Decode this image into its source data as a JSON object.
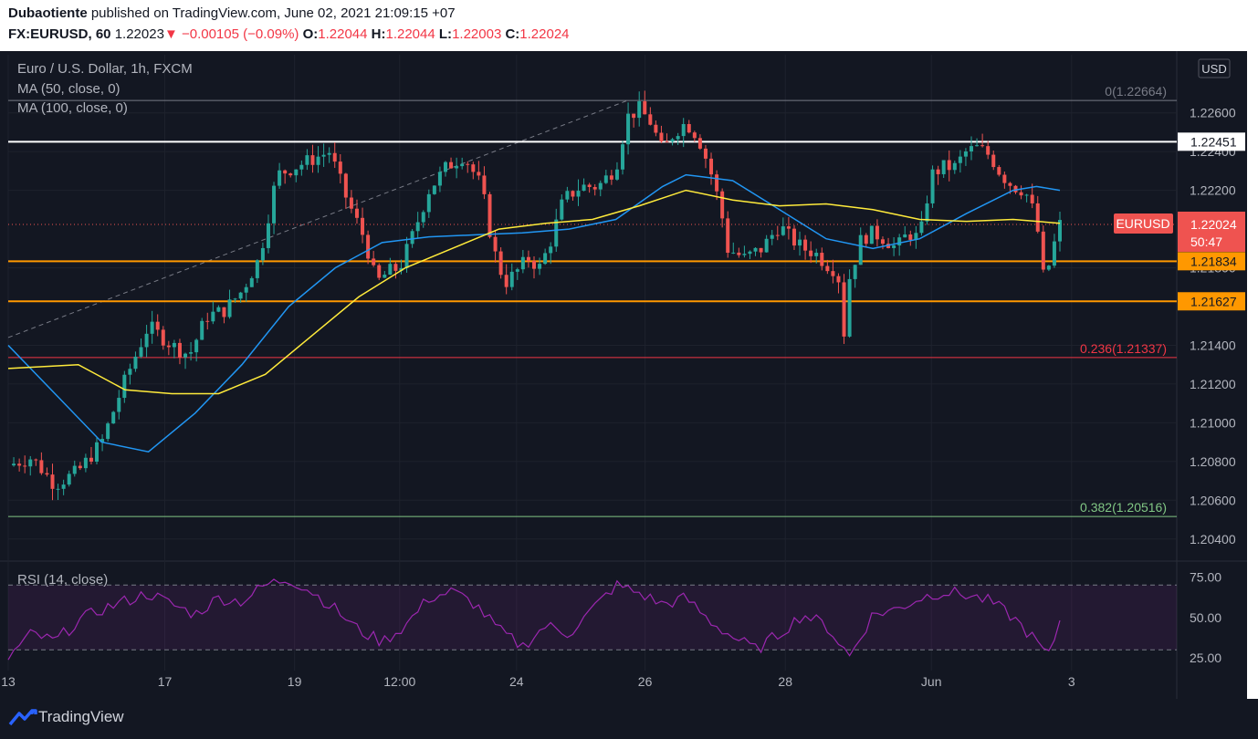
{
  "header": {
    "author": "Dubaotiente",
    "published_text": "published on TradingView.com, June 02, 2021 21:09:15 +07",
    "symbol": "FX:EURUSD, 60",
    "last": "1.22023",
    "change": "−0.00105 (−0.09%)",
    "o_label": "O:",
    "o_value": "1.22044",
    "h_label": "H:",
    "h_value": "1.22044",
    "l_label": "L:",
    "l_value": "1.22003",
    "c_label": "C:",
    "c_value": "1.22024"
  },
  "legend": {
    "title": "Euro / U.S. Dollar, 1h, FXCM",
    "ma50": "MA (50, close, 0)",
    "ma100": "MA (100, close, 0)",
    "rsi": "RSI (14, close)"
  },
  "footer": {
    "brand": "TradingView"
  },
  "colors": {
    "background": "#131722",
    "up": "#26a69a",
    "down": "#ef5350",
    "ma50": "#2196f3",
    "ma100": "#ffeb3b",
    "support": "#ff9800",
    "resistance": "#ffffff",
    "fib0": "#787b86",
    "fib236": "#f23645",
    "fib382": "#81c784",
    "rsi": "#9c27b0"
  },
  "chart_data": {
    "type": "candlestick",
    "currency": "USD",
    "ylim": [
      1.203,
      1.229
    ],
    "y_ticks": [
      "1.22600",
      "1.22400",
      "1.22200",
      "1.21800",
      "1.21400",
      "1.21200",
      "1.21000",
      "1.20800",
      "1.20600",
      "1.20400"
    ],
    "x_ticks": [
      "13",
      "17",
      "19",
      "12:00",
      "24",
      "26",
      "28",
      "Jun",
      "3"
    ],
    "price_levels": [
      {
        "label": "1.22451",
        "value": 1.22451,
        "kind": "resistance"
      },
      {
        "label": "1.21834",
        "value": 1.21834,
        "kind": "support"
      },
      {
        "label": "1.21627",
        "value": 1.21627,
        "kind": "support"
      }
    ],
    "fib_levels": [
      {
        "label": "0(1.22664)",
        "value": 1.22664
      },
      {
        "label": "0.236(1.21337)",
        "value": 1.21337
      },
      {
        "label": "0.382(1.20516)",
        "value": 1.20516
      }
    ],
    "current": {
      "label": "EURUSD",
      "price": "1.22024",
      "countdown": "50:47",
      "value": 1.22024
    },
    "close_path": [
      [
        0,
        1.2078
      ],
      [
        0.02,
        1.2082
      ],
      [
        0.04,
        1.2068
      ],
      [
        0.06,
        1.2075
      ],
      [
        0.08,
        1.209
      ],
      [
        0.1,
        1.2122
      ],
      [
        0.12,
        1.215
      ],
      [
        0.14,
        1.214
      ],
      [
        0.155,
        1.2135
      ],
      [
        0.17,
        1.2155
      ],
      [
        0.185,
        1.2158
      ],
      [
        0.2,
        1.2168
      ],
      [
        0.215,
        1.2185
      ],
      [
        0.23,
        1.2228
      ],
      [
        0.245,
        1.2232
      ],
      [
        0.26,
        1.2236
      ],
      [
        0.275,
        1.224
      ],
      [
        0.29,
        1.2215
      ],
      [
        0.305,
        1.2195
      ],
      [
        0.315,
        1.2172
      ],
      [
        0.325,
        1.2178
      ],
      [
        0.335,
        1.218
      ],
      [
        0.345,
        1.2195
      ],
      [
        0.36,
        1.222
      ],
      [
        0.375,
        1.2232
      ],
      [
        0.39,
        1.2238
      ],
      [
        0.405,
        1.2222
      ],
      [
        0.415,
        1.219
      ],
      [
        0.425,
        1.2172
      ],
      [
        0.435,
        1.2178
      ],
      [
        0.445,
        1.2185
      ],
      [
        0.455,
        1.218
      ],
      [
        0.465,
        1.2195
      ],
      [
        0.475,
        1.2215
      ],
      [
        0.49,
        1.2222
      ],
      [
        0.505,
        1.2222
      ],
      [
        0.52,
        1.2232
      ],
      [
        0.53,
        1.2258
      ],
      [
        0.54,
        1.2262
      ],
      [
        0.55,
        1.2255
      ],
      [
        0.56,
        1.224
      ],
      [
        0.57,
        1.225
      ],
      [
        0.58,
        1.2255
      ],
      [
        0.59,
        1.2248
      ],
      [
        0.6,
        1.2232
      ],
      [
        0.61,
        1.221
      ],
      [
        0.615,
        1.219
      ],
      [
        0.63,
        1.2185
      ],
      [
        0.645,
        1.219
      ],
      [
        0.66,
        1.2202
      ],
      [
        0.67,
        1.2195
      ],
      [
        0.68,
        1.219
      ],
      [
        0.69,
        1.2188
      ],
      [
        0.7,
        1.2182
      ],
      [
        0.71,
        1.2178
      ],
      [
        0.715,
        1.2145
      ],
      [
        0.72,
        1.2175
      ],
      [
        0.73,
        1.2195
      ],
      [
        0.74,
        1.2198
      ],
      [
        0.75,
        1.2195
      ],
      [
        0.76,
        1.219
      ],
      [
        0.77,
        1.2198
      ],
      [
        0.78,
        1.2195
      ],
      [
        0.79,
        1.2228
      ],
      [
        0.8,
        1.2232
      ],
      [
        0.81,
        1.2232
      ],
      [
        0.82,
        1.224
      ],
      [
        0.83,
        1.2242
      ],
      [
        0.84,
        1.2238
      ],
      [
        0.85,
        1.2228
      ],
      [
        0.86,
        1.2222
      ],
      [
        0.87,
        1.222
      ],
      [
        0.88,
        1.2205
      ],
      [
        0.885,
        1.2175
      ],
      [
        0.89,
        1.218
      ],
      [
        0.895,
        1.2192
      ],
      [
        0.9,
        1.22024
      ]
    ],
    "ma50": [
      [
        0,
        1.214
      ],
      [
        0.04,
        1.2115
      ],
      [
        0.08,
        1.209
      ],
      [
        0.12,
        1.2085
      ],
      [
        0.16,
        1.2105
      ],
      [
        0.2,
        1.213
      ],
      [
        0.24,
        1.216
      ],
      [
        0.28,
        1.218
      ],
      [
        0.32,
        1.2193
      ],
      [
        0.36,
        1.2196
      ],
      [
        0.4,
        1.2197
      ],
      [
        0.44,
        1.2198
      ],
      [
        0.48,
        1.22
      ],
      [
        0.52,
        1.2205
      ],
      [
        0.56,
        1.2222
      ],
      [
        0.58,
        1.2228
      ],
      [
        0.62,
        1.2225
      ],
      [
        0.66,
        1.221
      ],
      [
        0.7,
        1.2195
      ],
      [
        0.74,
        1.219
      ],
      [
        0.78,
        1.2195
      ],
      [
        0.82,
        1.2208
      ],
      [
        0.86,
        1.222
      ],
      [
        0.88,
        1.2222
      ],
      [
        0.9,
        1.222
      ]
    ],
    "ma100": [
      [
        0,
        1.2128
      ],
      [
        0.06,
        1.213
      ],
      [
        0.1,
        1.2117
      ],
      [
        0.14,
        1.2115
      ],
      [
        0.18,
        1.2115
      ],
      [
        0.22,
        1.2125
      ],
      [
        0.26,
        1.2145
      ],
      [
        0.3,
        1.2165
      ],
      [
        0.34,
        1.218
      ],
      [
        0.38,
        1.219
      ],
      [
        0.42,
        1.22
      ],
      [
        0.46,
        1.2203
      ],
      [
        0.5,
        1.2205
      ],
      [
        0.54,
        1.2212
      ],
      [
        0.58,
        1.222
      ],
      [
        0.62,
        1.2215
      ],
      [
        0.66,
        1.2212
      ],
      [
        0.7,
        1.2213
      ],
      [
        0.74,
        1.221
      ],
      [
        0.78,
        1.2205
      ],
      [
        0.82,
        1.2204
      ],
      [
        0.86,
        1.2205
      ],
      [
        0.9,
        1.2203
      ]
    ],
    "rsi": {
      "ylim": [
        20,
        82
      ],
      "levels": [
        70,
        30
      ],
      "ticks": [
        "75.00",
        "50.00",
        "25.00"
      ],
      "values": [
        [
          0,
          25
        ],
        [
          0.02,
          40
        ],
        [
          0.04,
          35
        ],
        [
          0.06,
          48
        ],
        [
          0.08,
          55
        ],
        [
          0.1,
          60
        ],
        [
          0.12,
          65
        ],
        [
          0.14,
          58
        ],
        [
          0.16,
          52
        ],
        [
          0.18,
          62
        ],
        [
          0.2,
          60
        ],
        [
          0.22,
          70
        ],
        [
          0.24,
          74
        ],
        [
          0.26,
          66
        ],
        [
          0.28,
          55
        ],
        [
          0.3,
          42
        ],
        [
          0.32,
          35
        ],
        [
          0.34,
          45
        ],
        [
          0.36,
          62
        ],
        [
          0.38,
          66
        ],
        [
          0.4,
          58
        ],
        [
          0.42,
          42
        ],
        [
          0.44,
          32
        ],
        [
          0.46,
          45
        ],
        [
          0.48,
          40
        ],
        [
          0.5,
          55
        ],
        [
          0.52,
          70
        ],
        [
          0.54,
          65
        ],
        [
          0.56,
          58
        ],
        [
          0.58,
          62
        ],
        [
          0.6,
          48
        ],
        [
          0.62,
          38
        ],
        [
          0.64,
          30
        ],
        [
          0.66,
          40
        ],
        [
          0.68,
          52
        ],
        [
          0.7,
          45
        ],
        [
          0.72,
          26
        ],
        [
          0.74,
          52
        ],
        [
          0.76,
          55
        ],
        [
          0.78,
          62
        ],
        [
          0.8,
          66
        ],
        [
          0.82,
          64
        ],
        [
          0.84,
          60
        ],
        [
          0.86,
          50
        ],
        [
          0.88,
          35
        ],
        [
          0.89,
          25
        ],
        [
          0.9,
          48
        ]
      ]
    }
  }
}
